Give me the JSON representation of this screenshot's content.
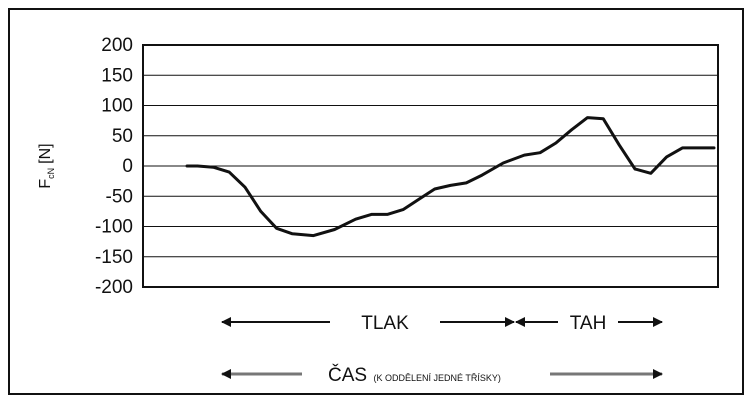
{
  "chart_data": {
    "type": "line",
    "title": "",
    "ylabel": "F",
    "ylabel_subscript": "cN",
    "ylabel_unit": "[N]",
    "ylim": [
      -200,
      200
    ],
    "y_ticks": [
      200,
      150,
      100,
      50,
      0,
      -50,
      -100,
      -150,
      -200
    ],
    "grid": true,
    "series": [
      {
        "x": [
          0,
          2,
          5,
          8,
          11,
          14,
          17,
          20,
          24,
          28,
          32,
          35,
          38,
          41,
          44,
          47,
          50,
          53,
          56,
          60,
          64,
          67,
          70,
          73,
          76,
          79,
          82,
          85,
          88,
          91,
          94,
          96,
          98,
          100
        ],
        "y": [
          0,
          0,
          -2,
          -10,
          -35,
          -75,
          -103,
          -112,
          -115,
          -105,
          -88,
          -80,
          -80,
          -72,
          -55,
          -38,
          -32,
          -28,
          -15,
          5,
          18,
          22,
          38,
          60,
          80,
          78,
          35,
          -5,
          -12,
          15,
          30,
          30,
          30,
          30
        ]
      }
    ],
    "annotations": {
      "tlak": "TLAK",
      "tah": "TAH",
      "cas_main": "ČAS",
      "cas_small": "(K ODDĚLENÍ JEDNÉ TŘÍSKY)"
    }
  },
  "colors": {
    "axis": "#111111",
    "grid": "#111111",
    "line": "#111111",
    "gray_arrow": "#777777"
  }
}
